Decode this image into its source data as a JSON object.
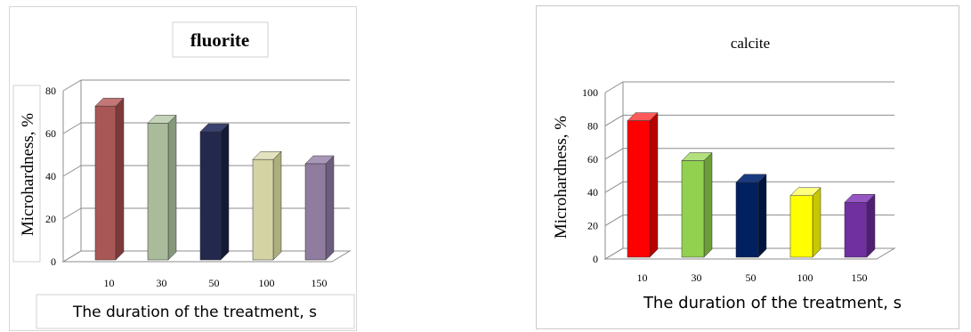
{
  "chart_data": [
    {
      "type": "bar",
      "title": "fluorite",
      "xlabel": "The duration of the treatment, s",
      "ylabel": "Microhardness, %",
      "categories": [
        "10",
        "30",
        "50",
        "100",
        "150"
      ],
      "yticks": [
        "0",
        "20",
        "40",
        "60",
        "80"
      ],
      "ylim": [
        0,
        80
      ],
      "grid": true,
      "series": [
        {
          "values": [
            72,
            64,
            60,
            47,
            45
          ]
        }
      ],
      "bar_colors": [
        "#a95656",
        "#a9bb9a",
        "#22294d",
        "#d3d3a4",
        "#8f7c9e"
      ],
      "bar_side_colors": [
        "#7f3939",
        "#86987a",
        "#141a36",
        "#adad7e",
        "#6d5c7e"
      ],
      "bar_top_colors": [
        "#c47777",
        "#c5d3b8",
        "#3a4270",
        "#e3e3c0",
        "#a997b8"
      ]
    },
    {
      "type": "bar",
      "title": "calcite",
      "xlabel": "The duration of the treatment, s",
      "ylabel": "Microhardness, %",
      "categories": [
        "10",
        "30",
        "50",
        "100",
        "150"
      ],
      "yticks": [
        "0",
        "20",
        "40",
        "60",
        "80",
        "100"
      ],
      "ylim": [
        0,
        100
      ],
      "grid": true,
      "series": [
        {
          "values": [
            82,
            58,
            45,
            37,
            33
          ]
        }
      ],
      "bar_colors": [
        "#ff0000",
        "#92d050",
        "#002060",
        "#ffff00",
        "#7030a0"
      ],
      "bar_side_colors": [
        "#b80000",
        "#6c9e36",
        "#001440",
        "#c8c800",
        "#4f1f74"
      ],
      "bar_top_colors": [
        "#ff5a5a",
        "#b2e07e",
        "#1a3a80",
        "#ffff80",
        "#9656c4"
      ]
    }
  ]
}
